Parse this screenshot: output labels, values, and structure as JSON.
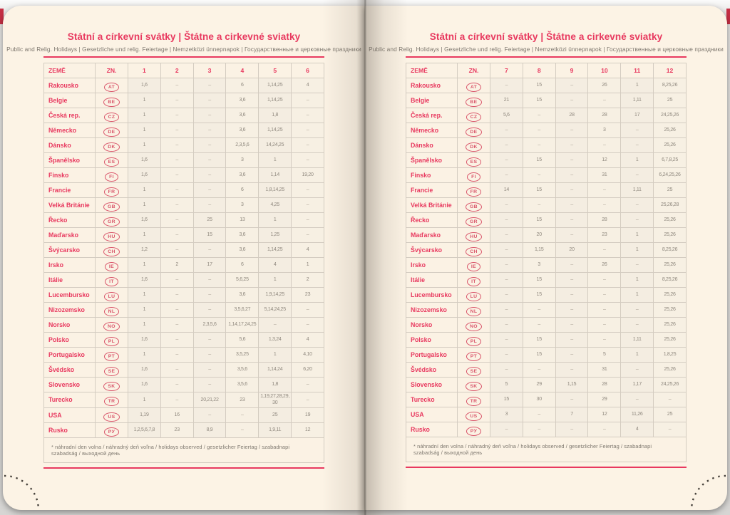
{
  "colors": {
    "accent": "#e8395f",
    "page": "#fcf3e5",
    "cover": "#c62f44"
  },
  "page": {
    "title": "Státní a církevní svátky | Štátne a cirkevné sviatky",
    "subtitle": "Public and Relig. Holidays | Gesetzliche und relig. Feiertage | Nemzetközi ünnepnapok | Государственные и церковные праздники",
    "footnote": "* náhradní den volna / náhradný deň voľna / holidays observed / gesetzlicher Feiertag / szabadnapi szabadság / выходной день"
  },
  "table": {
    "col_country": "ZEMĚ",
    "col_code": "ZN.",
    "left_months": [
      "1",
      "2",
      "3",
      "4",
      "5",
      "6"
    ],
    "right_months": [
      "7",
      "8",
      "9",
      "10",
      "11",
      "12"
    ],
    "rows": [
      {
        "country": "Rakousko",
        "code": "AT",
        "left": [
          "1, 6",
          "–",
          "–",
          "6",
          "1, 14, 25",
          "4"
        ],
        "right": [
          "–",
          "15",
          "–",
          "26",
          "1",
          "8, 25, 26"
        ]
      },
      {
        "country": "Belgie",
        "code": "BE",
        "left": [
          "1",
          "–",
          "–",
          "3, 6",
          "1, 14, 25",
          "–"
        ],
        "right": [
          "21",
          "15",
          "–",
          "–",
          "1, 11",
          "25"
        ]
      },
      {
        "country": "Česká rep.",
        "code": "CZ",
        "left": [
          "1",
          "–",
          "–",
          "3, 6",
          "1, 8",
          "–"
        ],
        "right": [
          "5, 6",
          "–",
          "28",
          "28",
          "17",
          "24, 25, 26"
        ]
      },
      {
        "country": "Německo",
        "code": "DE",
        "left": [
          "1",
          "–",
          "–",
          "3, 6",
          "1, 14, 25",
          "–"
        ],
        "right": [
          "–",
          "–",
          "–",
          "3",
          "–",
          "25, 26"
        ]
      },
      {
        "country": "Dánsko",
        "code": "DK",
        "left": [
          "1",
          "–",
          "–",
          "2, 3, 5, 6",
          "14, 24, 25",
          "–"
        ],
        "right": [
          "–",
          "–",
          "–",
          "–",
          "–",
          "25, 26"
        ]
      },
      {
        "country": "Španělsko",
        "code": "ES",
        "left": [
          "1, 6",
          "–",
          "–",
          "3",
          "1",
          "–"
        ],
        "right": [
          "–",
          "15",
          "–",
          "12",
          "1",
          "6, 7, 8, 25"
        ]
      },
      {
        "country": "Finsko",
        "code": "FI",
        "left": [
          "1, 6",
          "–",
          "–",
          "3, 6",
          "1, 14",
          "19, 20"
        ],
        "right": [
          "–",
          "–",
          "–",
          "31",
          "–",
          "6, 24, 25, 26"
        ]
      },
      {
        "country": "Francie",
        "code": "FR",
        "left": [
          "1",
          "–",
          "–",
          "6",
          "1, 8, 14, 25",
          "–"
        ],
        "right": [
          "14",
          "15",
          "–",
          "–",
          "1, 11",
          "25"
        ]
      },
      {
        "country": "Velká Británie",
        "code": "GB",
        "left": [
          "1",
          "–",
          "–",
          "3",
          "4, 25",
          "–"
        ],
        "right": [
          "–",
          "–",
          "–",
          "–",
          "–",
          "25, 26, 28"
        ]
      },
      {
        "country": "Řecko",
        "code": "GR",
        "left": [
          "1, 6",
          "–",
          "25",
          "13",
          "1",
          "–"
        ],
        "right": [
          "–",
          "15",
          "–",
          "28",
          "–",
          "25, 26"
        ]
      },
      {
        "country": "Maďarsko",
        "code": "HU",
        "left": [
          "1",
          "–",
          "15",
          "3, 6",
          "1, 25",
          "–"
        ],
        "right": [
          "–",
          "20",
          "–",
          "23",
          "1",
          "25, 26"
        ]
      },
      {
        "country": "Švýcarsko",
        "code": "CH",
        "left": [
          "1, 2",
          "–",
          "–",
          "3, 6",
          "1, 14, 25",
          "4"
        ],
        "right": [
          "–",
          "1, 15",
          "20",
          "–",
          "1",
          "8, 25, 26"
        ]
      },
      {
        "country": "Irsko",
        "code": "IE",
        "left": [
          "1",
          "2",
          "17",
          "6",
          "4",
          "1"
        ],
        "right": [
          "–",
          "3",
          "–",
          "26",
          "–",
          "25, 26"
        ]
      },
      {
        "country": "Itálie",
        "code": "IT",
        "left": [
          "1, 6",
          "–",
          "–",
          "5, 6, 25",
          "1",
          "2"
        ],
        "right": [
          "–",
          "15",
          "–",
          "–",
          "1",
          "8, 25, 26"
        ]
      },
      {
        "country": "Lucembursko",
        "code": "LU",
        "left": [
          "1",
          "–",
          "–",
          "3, 6",
          "1, 9, 14, 25",
          "23"
        ],
        "right": [
          "–",
          "15",
          "–",
          "–",
          "1",
          "25, 26"
        ]
      },
      {
        "country": "Nizozemsko",
        "code": "NL",
        "left": [
          "1",
          "–",
          "–",
          "3, 5, 6, 27",
          "5, 14, 24, 25",
          "–"
        ],
        "right": [
          "–",
          "–",
          "–",
          "–",
          "–",
          "25, 26"
        ]
      },
      {
        "country": "Norsko",
        "code": "NO",
        "left": [
          "1",
          "–",
          "2, 3, 5, 6",
          "1, 14, 17, 24, 25",
          "–",
          "–"
        ],
        "right": [
          "–",
          "–",
          "–",
          "–",
          "–",
          "25, 26"
        ]
      },
      {
        "country": "Polsko",
        "code": "PL",
        "left": [
          "1, 6",
          "–",
          "–",
          "5, 6",
          "1, 3, 24",
          "4"
        ],
        "right": [
          "–",
          "15",
          "–",
          "–",
          "1, 11",
          "25, 26"
        ]
      },
      {
        "country": "Portugalsko",
        "code": "PT",
        "left": [
          "1",
          "–",
          "–",
          "3, 5, 25",
          "1",
          "4, 10"
        ],
        "right": [
          "–",
          "15",
          "–",
          "5",
          "1",
          "1, 8, 25"
        ]
      },
      {
        "country": "Švédsko",
        "code": "SE",
        "left": [
          "1, 6",
          "–",
          "–",
          "3, 5, 6",
          "1, 14, 24",
          "6, 20"
        ],
        "right": [
          "–",
          "–",
          "–",
          "31",
          "–",
          "25, 26"
        ]
      },
      {
        "country": "Slovensko",
        "code": "SK",
        "left": [
          "1, 6",
          "–",
          "–",
          "3, 5, 6",
          "1, 8",
          "–"
        ],
        "right": [
          "5",
          "29",
          "1, 15",
          "28",
          "1, 17",
          "24, 25, 26"
        ]
      },
      {
        "country": "Turecko",
        "code": "TR",
        "left": [
          "1",
          "–",
          "20, 21, 22",
          "23",
          "1, 19, 27, 28, 29, 30",
          "–"
        ],
        "right": [
          "15",
          "30",
          "–",
          "29",
          "–",
          "–"
        ]
      },
      {
        "country": "USA",
        "code": "US",
        "left": [
          "1, 19",
          "16",
          "–",
          "–",
          "25",
          "19"
        ],
        "right": [
          "3",
          "–",
          "7",
          "12",
          "11, 26",
          "25"
        ]
      },
      {
        "country": "Rusko",
        "code": "РУ",
        "left": [
          "1, 2, 5, 6, 7, 8",
          "23",
          "8, 9",
          "–",
          "1, 9, 11",
          "12"
        ],
        "right": [
          "–",
          "–",
          "–",
          "–",
          "4",
          "–"
        ]
      }
    ]
  }
}
